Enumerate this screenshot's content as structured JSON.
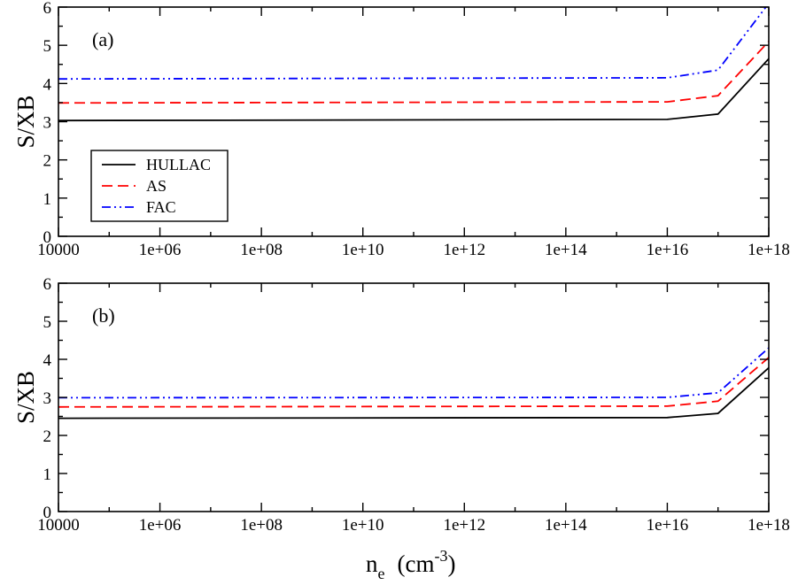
{
  "figure": {
    "xlabel_main": "n",
    "xlabel_sub": "e",
    "xlabel_unit_open": "(cm",
    "xlabel_sup": "-3",
    "xlabel_unit_close": ")"
  },
  "chart_data": [
    {
      "type": "line",
      "panel_label": "(a)",
      "title": "",
      "ylabel": "S/XB",
      "x_scale": "log",
      "xlim": [
        10000,
        1e+18
      ],
      "ylim": [
        0,
        6
      ],
      "x_ticks": [
        "10000",
        "1e+06",
        "1e+08",
        "1e+10",
        "1e+12",
        "1e+14",
        "1e+16",
        "1e+18"
      ],
      "y_ticks": [
        "0",
        "1",
        "2",
        "3",
        "4",
        "5",
        "6"
      ],
      "grid": false,
      "legend": {
        "placement": "lower-left",
        "entries": [
          "HULLAC",
          "AS",
          "FAC"
        ]
      },
      "series": [
        {
          "name": "HULLAC",
          "color": "#000000",
          "dash": "solid",
          "x": [
            10000,
            1e+16,
            1e+17,
            1e+18
          ],
          "y": [
            3.03,
            3.06,
            3.2,
            4.65
          ]
        },
        {
          "name": "AS",
          "color": "#ff0000",
          "dash": "dash",
          "x": [
            10000,
            1e+16,
            1e+17,
            1e+18
          ],
          "y": [
            3.49,
            3.52,
            3.68,
            5.1
          ]
        },
        {
          "name": "FAC",
          "color": "#0000ff",
          "dash": "dashdotdot",
          "x": [
            10000,
            1e+16,
            1e+17,
            1e+18
          ],
          "y": [
            4.12,
            4.15,
            4.35,
            6.1
          ]
        }
      ]
    },
    {
      "type": "line",
      "panel_label": "(b)",
      "title": "",
      "ylabel": "S/XB",
      "x_scale": "log",
      "xlim": [
        10000,
        1e+18
      ],
      "ylim": [
        0,
        6
      ],
      "x_ticks": [
        "10000",
        "1e+06",
        "1e+08",
        "1e+10",
        "1e+12",
        "1e+14",
        "1e+16",
        "1e+18"
      ],
      "y_ticks": [
        "0",
        "1",
        "2",
        "3",
        "4",
        "5",
        "6"
      ],
      "grid": false,
      "series": [
        {
          "name": "HULLAC",
          "color": "#000000",
          "dash": "solid",
          "x": [
            10000,
            1e+16,
            1e+17,
            1e+18
          ],
          "y": [
            2.45,
            2.47,
            2.58,
            3.78
          ]
        },
        {
          "name": "AS",
          "color": "#ff0000",
          "dash": "dash",
          "x": [
            10000,
            1e+16,
            1e+17,
            1e+18
          ],
          "y": [
            2.75,
            2.77,
            2.9,
            4.05
          ]
        },
        {
          "name": "FAC",
          "color": "#0000ff",
          "dash": "dashdotdot",
          "x": [
            10000,
            1e+16,
            1e+17,
            1e+18
          ],
          "y": [
            2.99,
            3.0,
            3.12,
            4.3
          ]
        }
      ]
    }
  ]
}
